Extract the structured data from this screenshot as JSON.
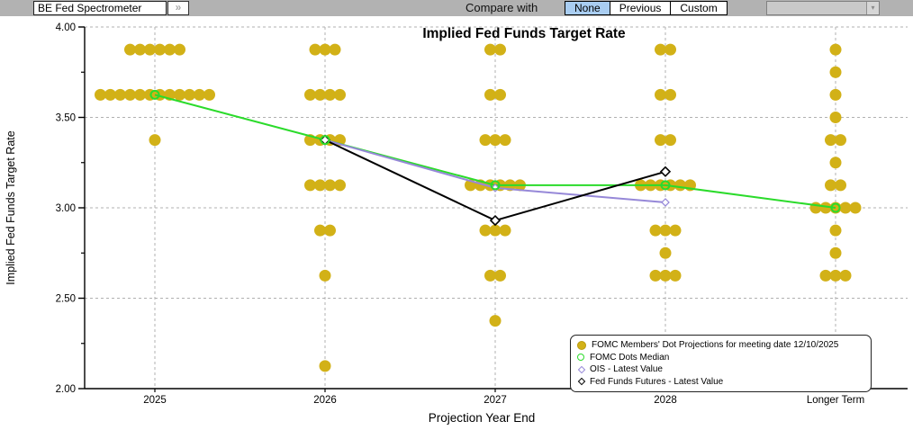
{
  "toolbar": {
    "security_name": "BE Fed Spectrometer",
    "expand_button": "»",
    "compare_label": "Compare with",
    "compare_options": [
      {
        "label": "None",
        "selected": true
      },
      {
        "label": "Previous",
        "selected": false
      },
      {
        "label": "Custom",
        "selected": false
      }
    ],
    "dropdown_arrow": "▾",
    "dropdown_value": ""
  },
  "colors": {
    "dot": "#d2b117",
    "median_green": "#2bdb2b",
    "ois_purple": "#9688d8",
    "futures_black": "#000000",
    "toolbar_bg": "#b2b2b2",
    "selected_button_bg": "#a9cdf1",
    "grid": "#b0b0b0"
  },
  "chart_data": {
    "type": "scatter",
    "title": "Implied Fed Funds Target Rate",
    "xlabel": "Projection Year End",
    "ylabel": "Implied Fed Funds Target Rate",
    "ylim": [
      2.0,
      4.0
    ],
    "ytick_major": [
      4.0,
      3.5,
      3.0,
      2.5,
      2.0
    ],
    "ytick_minor": [
      3.75,
      3.25,
      2.75,
      2.25
    ],
    "categories": [
      "2025",
      "2026",
      "2027",
      "2028",
      "Longer Term"
    ],
    "grid": "dashed",
    "legend_position": "bottom-right",
    "dot_series": {
      "name": "FOMC Members' Dot Projections for meeting date 12/10/2025",
      "marker": "filled-circle",
      "dots": [
        {
          "category": "2025",
          "value": 3.875,
          "count": 6
        },
        {
          "category": "2025",
          "value": 3.625,
          "count": 12
        },
        {
          "category": "2025",
          "value": 3.375,
          "count": 1
        },
        {
          "category": "2026",
          "value": 3.875,
          "count": 3
        },
        {
          "category": "2026",
          "value": 3.625,
          "count": 4
        },
        {
          "category": "2026",
          "value": 3.375,
          "count": 4
        },
        {
          "category": "2026",
          "value": 3.125,
          "count": 4
        },
        {
          "category": "2026",
          "value": 2.875,
          "count": 2
        },
        {
          "category": "2026",
          "value": 2.625,
          "count": 1
        },
        {
          "category": "2026",
          "value": 2.125,
          "count": 1
        },
        {
          "category": "2027",
          "value": 3.875,
          "count": 2
        },
        {
          "category": "2027",
          "value": 3.625,
          "count": 2
        },
        {
          "category": "2027",
          "value": 3.375,
          "count": 3
        },
        {
          "category": "2027",
          "value": 3.125,
          "count": 6
        },
        {
          "category": "2027",
          "value": 2.875,
          "count": 3
        },
        {
          "category": "2027",
          "value": 2.625,
          "count": 2
        },
        {
          "category": "2027",
          "value": 2.375,
          "count": 1
        },
        {
          "category": "2028",
          "value": 3.875,
          "count": 2
        },
        {
          "category": "2028",
          "value": 3.625,
          "count": 2
        },
        {
          "category": "2028",
          "value": 3.375,
          "count": 2
        },
        {
          "category": "2028",
          "value": 3.125,
          "count": 6
        },
        {
          "category": "2028",
          "value": 2.875,
          "count": 3
        },
        {
          "category": "2028",
          "value": 2.75,
          "count": 1
        },
        {
          "category": "2028",
          "value": 2.625,
          "count": 3
        },
        {
          "category": "Longer Term",
          "value": 3.875,
          "count": 1
        },
        {
          "category": "Longer Term",
          "value": 3.75,
          "count": 1
        },
        {
          "category": "Longer Term",
          "value": 3.625,
          "count": 1
        },
        {
          "category": "Longer Term",
          "value": 3.5,
          "count": 1
        },
        {
          "category": "Longer Term",
          "value": 3.375,
          "count": 2
        },
        {
          "category": "Longer Term",
          "value": 3.25,
          "count": 1
        },
        {
          "category": "Longer Term",
          "value": 3.125,
          "count": 2
        },
        {
          "category": "Longer Term",
          "value": 3.0,
          "count": 5
        },
        {
          "category": "Longer Term",
          "value": 2.875,
          "count": 1
        },
        {
          "category": "Longer Term",
          "value": 2.75,
          "count": 1
        },
        {
          "category": "Longer Term",
          "value": 2.625,
          "count": 3
        }
      ]
    },
    "line_series": [
      {
        "name": "FOMC Dots Median",
        "marker": "open-circle",
        "color_key": "median_green",
        "points": [
          {
            "category": "2025",
            "value": 3.625
          },
          {
            "category": "2026",
            "value": 3.375
          },
          {
            "category": "2027",
            "value": 3.125
          },
          {
            "category": "2028",
            "value": 3.125
          },
          {
            "category": "Longer Term",
            "value": 3.0
          }
        ]
      },
      {
        "name": "OIS - Latest Value",
        "marker": "open-diamond",
        "color_key": "ois_purple",
        "points": [
          {
            "category": "2026",
            "value": 3.375
          },
          {
            "category": "2027",
            "value": 3.11
          },
          {
            "category": "2028",
            "value": 3.03
          }
        ]
      },
      {
        "name": "Fed Funds Futures - Latest Value",
        "marker": "open-diamond",
        "color_key": "futures_black",
        "points": [
          {
            "category": "2026",
            "value": 3.375
          },
          {
            "category": "2027",
            "value": 2.93
          },
          {
            "category": "2028",
            "value": 3.2
          }
        ]
      }
    ]
  }
}
